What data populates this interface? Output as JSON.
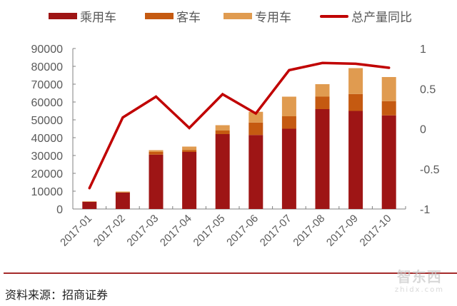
{
  "legend": {
    "passenger": "乘用车",
    "bus": "客车",
    "special": "专用车",
    "yoy": "总产量同比"
  },
  "colors": {
    "passenger": "#9e1515",
    "bus": "#c55a11",
    "special": "#e09b50",
    "yoy": "#c00000",
    "axis": "#808080",
    "tick_text": "#595959",
    "divider": "#a52a2a"
  },
  "source": "资料来源：招商证券",
  "watermark": {
    "top": "智东西",
    "bottom": "zhidx.com"
  },
  "chart_data": {
    "type": "bar",
    "subtype": "stacked_bar_with_line_secondary_axis",
    "title": "",
    "categories": [
      "2017-01",
      "2017-02",
      "2017-03",
      "2017-04",
      "2017-05",
      "2017-06",
      "2017-07",
      "2017-08",
      "2017-09",
      "2017-10"
    ],
    "series": [
      {
        "name": "乘用车",
        "type": "bar",
        "axis": "left",
        "values": [
          4000,
          9200,
          30500,
          32000,
          42000,
          41500,
          45000,
          56000,
          55000,
          52500
        ]
      },
      {
        "name": "客车",
        "type": "bar",
        "axis": "left",
        "values": [
          0,
          0,
          1500,
          1000,
          2000,
          7000,
          7000,
          7000,
          9500,
          8000
        ]
      },
      {
        "name": "专用车",
        "type": "bar",
        "axis": "left",
        "values": [
          300,
          600,
          1000,
          2000,
          3000,
          6000,
          11000,
          7000,
          14500,
          13500
        ]
      },
      {
        "name": "总产量同比",
        "type": "line",
        "axis": "right",
        "values": [
          -0.74,
          0.14,
          0.4,
          0.01,
          0.43,
          0.19,
          0.73,
          0.82,
          0.81,
          0.76
        ]
      }
    ],
    "xlabel": "",
    "ylabel": "",
    "ylim": [
      0,
      90000
    ],
    "yticks": [
      "0",
      "10000",
      "20000",
      "30000",
      "40000",
      "50000",
      "60000",
      "70000",
      "80000",
      "90000"
    ],
    "y2lim": [
      -1,
      1
    ],
    "y2ticks": [
      "-1",
      "-0.5",
      "0",
      "0.5",
      "1"
    ],
    "grid": false,
    "legend_position": "top"
  }
}
